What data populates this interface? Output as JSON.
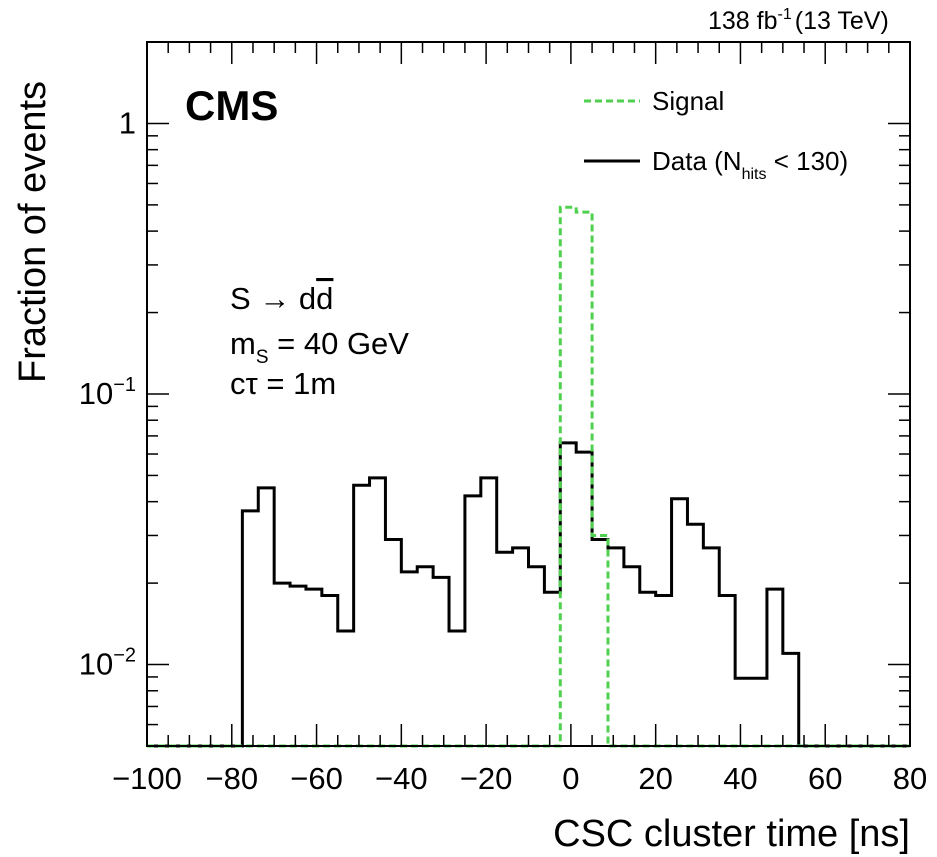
{
  "chart_data": {
    "type": "histogram",
    "experiment": "CMS",
    "lumi_label": "138 fb",
    "lumi_exponent": "-1",
    "energy_label": "(13 TeV)",
    "xlabel": "CSC cluster time [ns]",
    "ylabel": "Fraction of events",
    "xlim": [
      -100,
      80
    ],
    "ylim": [
      0.005,
      2
    ],
    "yscale": "log",
    "xticks": [
      -100,
      -80,
      -60,
      -40,
      -20,
      0,
      20,
      40,
      60,
      80
    ],
    "xtick_labels": [
      "−100",
      "−80",
      "−60",
      "−40",
      "−20",
      "0",
      "20",
      "40",
      "60",
      "80"
    ],
    "yticks": [
      {
        "value": 1,
        "base": "1",
        "exp": ""
      },
      {
        "value": 0.1,
        "base": "10",
        "exp": "−1"
      },
      {
        "value": 0.01,
        "base": "10",
        "exp": "−2"
      }
    ],
    "annotation": {
      "process": "S → d",
      "process_bar": "d",
      "mass_prefix": "m",
      "mass_sub": "S",
      "mass_value": " = 40 GeV",
      "ctau": "cτ = 1m"
    },
    "legend": {
      "position": "top-right",
      "signal_label": "Signal",
      "data_prefix": "Data (N",
      "data_sub": "hits",
      "data_suffix": " < 130)"
    },
    "bin_width": 3.75,
    "series": [
      {
        "name": "Signal",
        "color": "#4fd14f",
        "style": "dashed",
        "bins": [
          {
            "x": -2.5,
            "y": 0.49
          },
          {
            "x": 1.25,
            "y": 0.47
          },
          {
            "x": 5.0,
            "y": 0.03
          }
        ]
      },
      {
        "name": "Data",
        "color": "#000000",
        "style": "solid",
        "bins": [
          {
            "x": -77.5,
            "y": 0.037
          },
          {
            "x": -73.75,
            "y": 0.045
          },
          {
            "x": -70.0,
            "y": 0.02
          },
          {
            "x": -66.25,
            "y": 0.0195
          },
          {
            "x": -62.5,
            "y": 0.019
          },
          {
            "x": -58.75,
            "y": 0.018
          },
          {
            "x": -55.0,
            "y": 0.0133
          },
          {
            "x": -51.25,
            "y": 0.046
          },
          {
            "x": -47.5,
            "y": 0.049
          },
          {
            "x": -43.75,
            "y": 0.029
          },
          {
            "x": -40.0,
            "y": 0.022
          },
          {
            "x": -36.25,
            "y": 0.023
          },
          {
            "x": -32.5,
            "y": 0.021
          },
          {
            "x": -28.75,
            "y": 0.0133
          },
          {
            "x": -25.0,
            "y": 0.042
          },
          {
            "x": -21.25,
            "y": 0.049
          },
          {
            "x": -17.5,
            "y": 0.026
          },
          {
            "x": -13.75,
            "y": 0.027
          },
          {
            "x": -10.0,
            "y": 0.023
          },
          {
            "x": -6.25,
            "y": 0.0185
          },
          {
            "x": -2.5,
            "y": 0.066
          },
          {
            "x": 1.25,
            "y": 0.061
          },
          {
            "x": 5.0,
            "y": 0.029
          },
          {
            "x": 8.75,
            "y": 0.027
          },
          {
            "x": 12.5,
            "y": 0.023
          },
          {
            "x": 16.25,
            "y": 0.0185
          },
          {
            "x": 20.0,
            "y": 0.018
          },
          {
            "x": 23.75,
            "y": 0.041
          },
          {
            "x": 27.5,
            "y": 0.033
          },
          {
            "x": 31.25,
            "y": 0.027
          },
          {
            "x": 35.0,
            "y": 0.018
          },
          {
            "x": 38.75,
            "y": 0.0089
          },
          {
            "x": 42.5,
            "y": 0.0089
          },
          {
            "x": 46.25,
            "y": 0.019
          },
          {
            "x": 50.0,
            "y": 0.011
          }
        ]
      }
    ]
  }
}
